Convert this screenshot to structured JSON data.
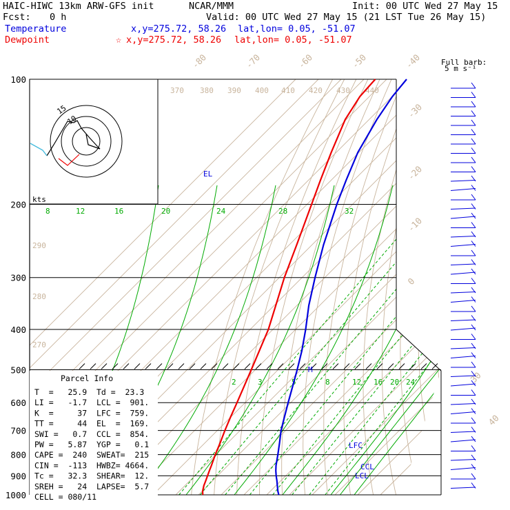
{
  "header": {
    "model": "HAIC-HIWC 13km ARW-GFS init",
    "org": "NCAR/MMM",
    "init": "Init: 00 UTC Wed 27 May 15",
    "fcst_label": "Fcst:",
    "fcst_value": "0 h",
    "valid": "Valid: 00 UTC Wed 27 May 15 (21 LST Tue 26 May 15)",
    "temp_label": "Temperature",
    "temp_xy": "x,y=275.72, 58.26",
    "temp_latlon": "lat,lon=  0.05, -51.07",
    "dew_label": "Dewpoint",
    "dew_mark": "☆",
    "dew_xy": "x,y=275.72, 58.26",
    "dew_latlon": "lat,lon=  0.05, -51.07"
  },
  "colors": {
    "temperature": "#ee0000",
    "dewpoint": "#0000dd",
    "isotherm": "#c8b49c",
    "mixing": "#00aa00",
    "axis": "#000000",
    "moist": "#b4a088",
    "cyan": "#44bbdd"
  },
  "barb_legend": {
    "line1": "Full barb:",
    "line2": "5 m s⁻¹"
  },
  "hodograph": {
    "units": "kts",
    "ring_label": "15",
    "ring2_label": "10"
  },
  "labels": {
    "el": "EL",
    "m": "M",
    "lfc": "LFC",
    "ccl": "CCL",
    "lcl": "LCL"
  },
  "parcel_info": {
    "title": "Parcel Info",
    "rows": [
      "T  =   25.9  Td =  23.3",
      "LI =   -1.7  LCL =  901.",
      "K  =     37  LFC =  759.",
      "TT =     44  EL  =  169.",
      "SWI =   0.7  CCL =  854.",
      "PW =   5.87  YGP =   0.1",
      "CAPE =  240  SWEAT=  215",
      "CIN =  -113  HWBZ= 4664.",
      "Tc =   32.3  SHEAR=  12.",
      "SREH =   24  LAPSE=  5.7",
      "CELL = 080/11"
    ]
  },
  "chart_data": {
    "type": "line",
    "title": "",
    "xlabel": "",
    "ylabel": "",
    "y_axis": {
      "scale": "log-pressure",
      "ylim": [
        1000,
        100
      ],
      "ticks": [
        100,
        200,
        300,
        400,
        500,
        600,
        700,
        800,
        900,
        1000
      ],
      "tick_labels": [
        "100",
        "200",
        "300",
        "400",
        "500",
        "600",
        "700",
        "800",
        "900",
        "1000"
      ]
    },
    "isotherm_labels": [
      "-80",
      "-70",
      "-60",
      "-50",
      "-40",
      "-30",
      "-20",
      "-10",
      "0",
      "30",
      "40"
    ],
    "theta_labels": [
      "370",
      "380",
      "390",
      "400",
      "410",
      "420",
      "430",
      "440",
      "290",
      "280",
      "270"
    ],
    "mixing_ratio_labels": [
      "8",
      "12",
      "16",
      "20",
      "24",
      "28",
      "32"
    ],
    "mixing_ratio_labels_lower": [
      "2",
      "3",
      "5",
      "8",
      "12",
      "16",
      "20",
      "24"
    ],
    "series": [
      {
        "name": "Temperature",
        "pressure": [
          1000,
          980,
          950,
          925,
          900,
          875,
          850,
          800,
          750,
          700,
          650,
          600,
          550,
          500,
          450,
          400,
          350,
          300,
          250,
          200,
          175,
          150,
          125,
          110,
          100
        ],
        "values": [
          25.9,
          24.2,
          22.3,
          21.0,
          19.6,
          18.2,
          16.8,
          13.7,
          10.7,
          7.3,
          3.9,
          0.4,
          -3.5,
          -7.8,
          -12.6,
          -18.0,
          -25.3,
          -33.8,
          -42.8,
          -54.0,
          -60.7,
          -68.2,
          -76.5,
          -80.2,
          -81.0
        ]
      },
      {
        "name": "Dewpoint",
        "pressure": [
          1000,
          980,
          950,
          925,
          900,
          875,
          850,
          800,
          750,
          700,
          650,
          600,
          550,
          500,
          450,
          400,
          350,
          300,
          250,
          200,
          175,
          150,
          125,
          110,
          100
        ],
        "values": [
          23.3,
          21.3,
          18.6,
          16.3,
          13.8,
          11.4,
          9.2,
          5.2,
          0.8,
          -4.0,
          -8.4,
          -13.1,
          -18.1,
          -23.6,
          -29.9,
          -37.6,
          -46.8,
          -56.3,
          -67.0,
          -78.9,
          -85.4,
          -92.5,
          -98.6,
          -101.9,
          -103.2
        ]
      }
    ]
  }
}
